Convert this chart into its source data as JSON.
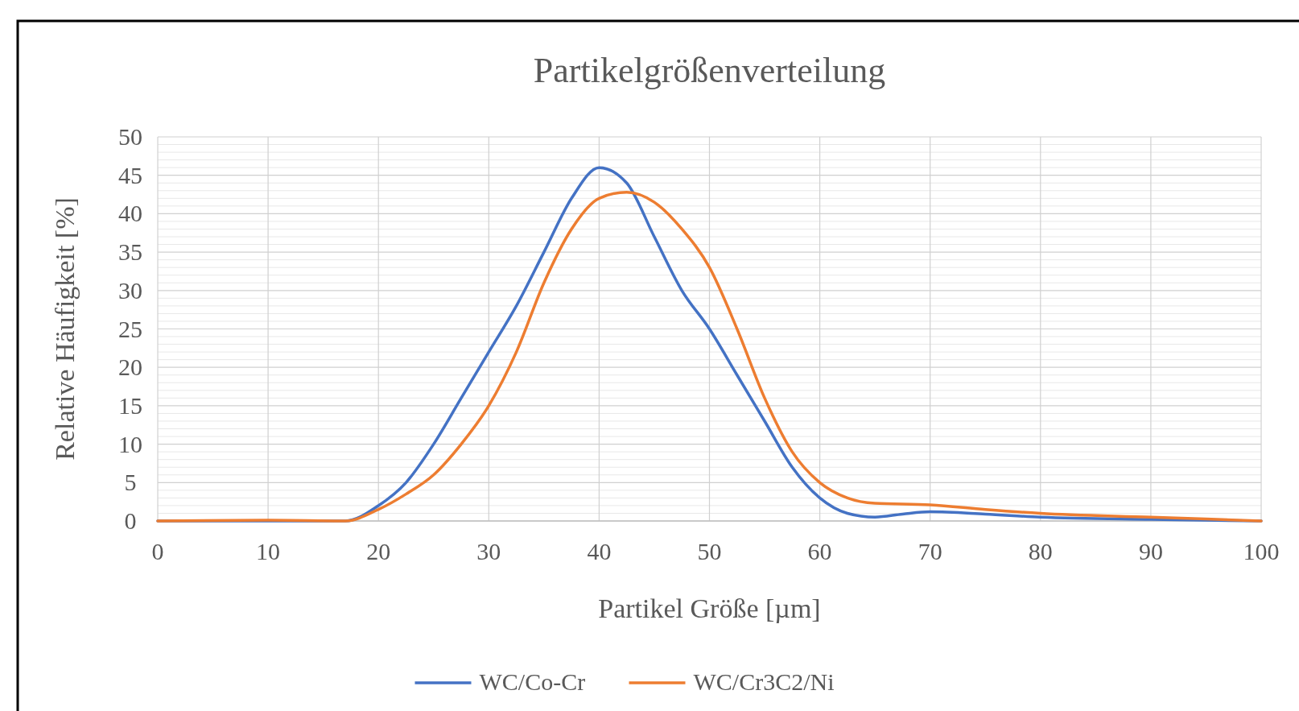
{
  "chart_data": {
    "type": "line",
    "title": "Partikelgrößenverteilung",
    "xlabel": "Partikel Größe [µm]",
    "ylabel": "Relative Häufigkeit [%]",
    "xlim": [
      0,
      100
    ],
    "xticks": [
      0,
      10,
      20,
      30,
      40,
      50,
      60,
      70,
      80,
      90,
      100
    ],
    "ylim": [
      0,
      50
    ],
    "yticks": [
      0,
      5,
      10,
      15,
      20,
      25,
      30,
      35,
      40,
      45,
      50
    ],
    "grid": true,
    "legend": "bottom",
    "marker": "none",
    "line_style": "solid",
    "series": [
      {
        "name": "WC/Co-Cr",
        "color": "#4472c4",
        "x": [
          0,
          17,
          20,
          22.5,
          25,
          27.5,
          30,
          32.5,
          35,
          37.5,
          40,
          42.5,
          45,
          47.5,
          50,
          52.5,
          55,
          57.5,
          60,
          62.5,
          65,
          67.5,
          70,
          75,
          80,
          90,
          100
        ],
        "values": [
          0,
          0,
          2,
          5,
          10,
          16,
          22,
          28,
          35,
          42,
          46,
          44,
          37,
          30,
          25,
          19,
          13,
          7,
          3,
          1,
          0.5,
          0.9,
          1.2,
          0.9,
          0.5,
          0.2,
          0
        ]
      },
      {
        "name": "WC/Cr3C2/Ni",
        "color": "#ed7d31",
        "x": [
          0,
          10,
          17,
          20,
          22.5,
          25,
          27.5,
          30,
          32.5,
          35,
          37.5,
          40,
          42.5,
          45,
          47.5,
          50,
          52.5,
          55,
          57.5,
          60,
          62.5,
          65,
          70,
          75,
          80,
          90,
          100
        ],
        "values": [
          0,
          0.1,
          0,
          1.5,
          3.5,
          6,
          10,
          15,
          22,
          31,
          38,
          42,
          42.8,
          41.5,
          38,
          33,
          25,
          16,
          9,
          5,
          3,
          2.3,
          2.1,
          1.5,
          1,
          0.5,
          0
        ]
      }
    ]
  }
}
